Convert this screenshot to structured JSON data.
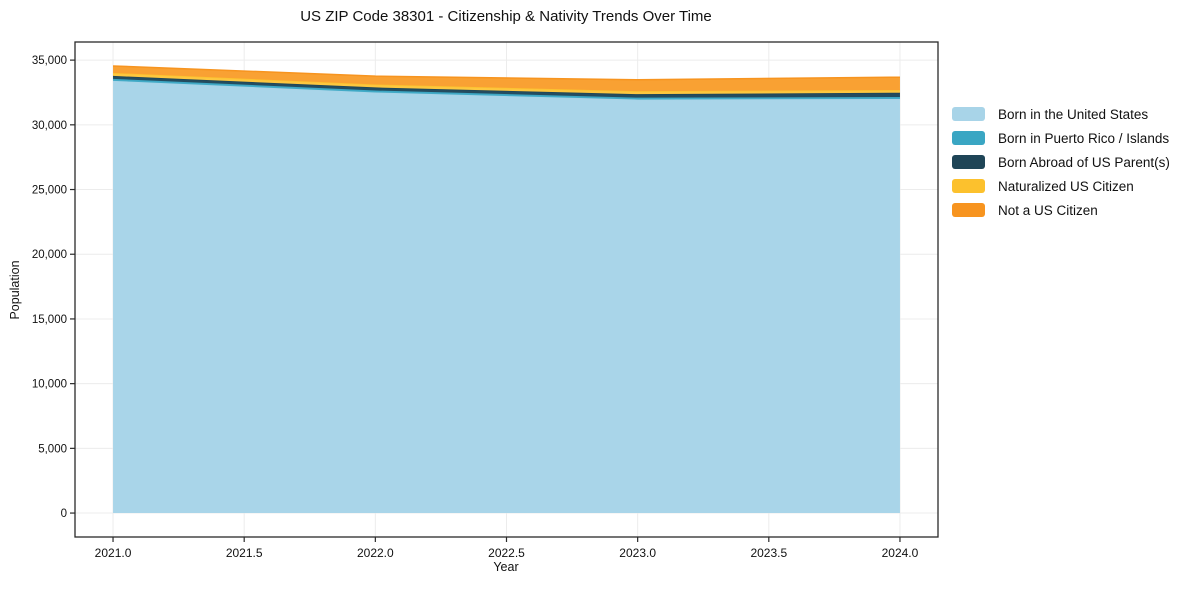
{
  "page": {
    "title": "US ZIP Code 38301 - Citizenship & Nativity Trends Over Time"
  },
  "axes": {
    "x_title": "Year",
    "y_title": "Population"
  },
  "chart_data": {
    "type": "area",
    "stacked": true,
    "title": "US ZIP Code 38301 - Citizenship & Nativity Trends Over Time",
    "xlabel": "Year",
    "ylabel": "Population",
    "grid": true,
    "legend_position": "right",
    "x": [
      2021,
      2022,
      2023,
      2024
    ],
    "series": [
      {
        "name": "Born in the United States",
        "color": "#a8d4e8",
        "fill": "#a9d5e9",
        "values": [
          33400,
          32500,
          31950,
          32000
        ]
      },
      {
        "name": "Born in Puerto Rico / Islands",
        "color": "#3aa6c3",
        "fill": "#43abc7",
        "values": [
          150,
          150,
          150,
          150
        ]
      },
      {
        "name": "Born Abroad of US Parent(s)",
        "color": "#1f4557",
        "fill": "#244c5f",
        "values": [
          230,
          240,
          270,
          330
        ]
      },
      {
        "name": "Naturalized US Citizen",
        "color": "#fcc12d",
        "fill": "#fdc740",
        "values": [
          230,
          230,
          230,
          210
        ]
      },
      {
        "name": "Not a US Citizen",
        "color": "#f7941f",
        "fill": "#f9a133",
        "values": [
          540,
          640,
          880,
          990
        ]
      }
    ],
    "x_range": [
      2020.855,
      2024.145
    ],
    "y_range": [
      -1850,
      36400
    ],
    "x_ticks": [
      {
        "value": 2021.0,
        "label": "2021.0"
      },
      {
        "value": 2021.5,
        "label": "2021.5"
      },
      {
        "value": 2022.0,
        "label": "2022.0"
      },
      {
        "value": 2022.5,
        "label": "2022.5"
      },
      {
        "value": 2023.0,
        "label": "2023.0"
      },
      {
        "value": 2023.5,
        "label": "2023.5"
      },
      {
        "value": 2024.0,
        "label": "2024.0"
      }
    ],
    "y_ticks": [
      {
        "value": 0,
        "label": "0"
      },
      {
        "value": 5000,
        "label": "5,000"
      },
      {
        "value": 10000,
        "label": "10,000"
      },
      {
        "value": 15000,
        "label": "15,000"
      },
      {
        "value": 20000,
        "label": "20,000"
      },
      {
        "value": 25000,
        "label": "25,000"
      },
      {
        "value": 30000,
        "label": "30,000"
      },
      {
        "value": 35000,
        "label": "35,000"
      }
    ],
    "colors": {
      "gridline": "#ececec",
      "frame": "#2a2a2a",
      "tick_text": "#111111"
    }
  }
}
